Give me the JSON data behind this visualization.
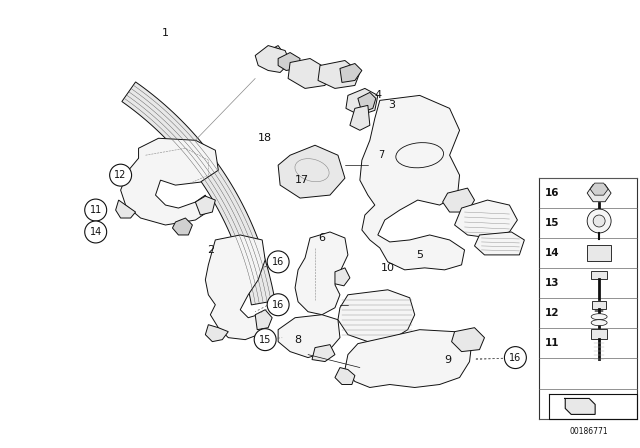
{
  "background_color": "#ffffff",
  "part_number": "00186771",
  "fig_width": 6.4,
  "fig_height": 4.48,
  "line_color": "#111111",
  "lw": 0.7,
  "fill_light": "#f5f5f5",
  "fill_mid": "#e8e8e8",
  "fill_dark": "#d0d0d0"
}
